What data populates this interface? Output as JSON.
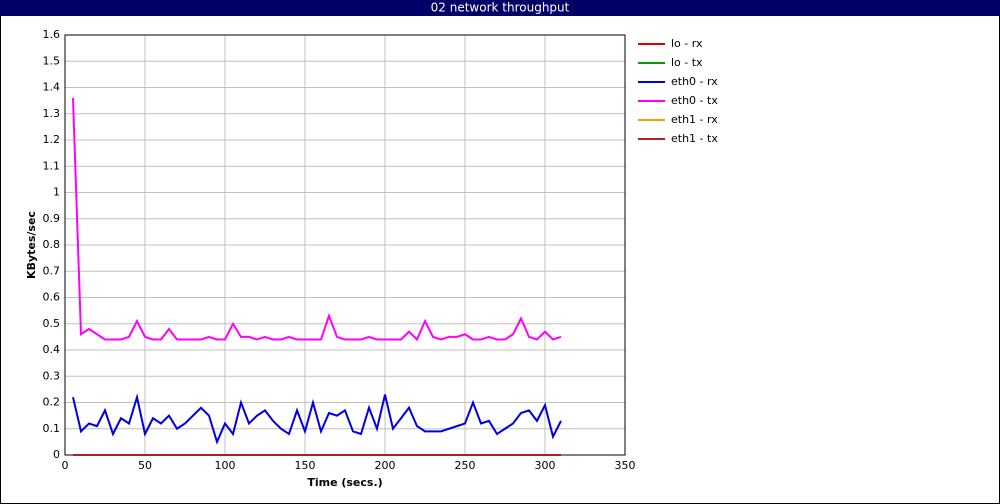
{
  "chart_data": {
    "type": "line",
    "title": "02 network throughput",
    "x_label": "Time (secs.)",
    "y_label": "KBytes/sec",
    "x": [
      5,
      10,
      15,
      20,
      25,
      30,
      35,
      40,
      45,
      50,
      55,
      60,
      65,
      70,
      75,
      80,
      85,
      90,
      95,
      100,
      105,
      110,
      115,
      120,
      125,
      130,
      135,
      140,
      145,
      150,
      155,
      160,
      165,
      170,
      175,
      180,
      185,
      190,
      195,
      200,
      205,
      210,
      215,
      220,
      225,
      230,
      235,
      240,
      245,
      250,
      255,
      260,
      265,
      270,
      275,
      280,
      285,
      290,
      295,
      300,
      305,
      310
    ],
    "xlim": [
      0,
      350
    ],
    "xticks": [
      0,
      50,
      100,
      150,
      200,
      250,
      300,
      350
    ],
    "ylim": [
      0,
      1.6
    ],
    "yticks": [
      0,
      0.1,
      0.2,
      0.3,
      0.4,
      0.5,
      0.6,
      0.7,
      0.8,
      0.9,
      1,
      1.1,
      1.2,
      1.3,
      1.4,
      1.5,
      1.6
    ],
    "grid": true,
    "legend": "right",
    "series": [
      {
        "name": "lo - rx",
        "color": "#e00000",
        "values": [
          0,
          0,
          0,
          0,
          0,
          0,
          0,
          0,
          0,
          0,
          0,
          0,
          0,
          0,
          0,
          0,
          0,
          0,
          0,
          0,
          0,
          0,
          0,
          0,
          0,
          0,
          0,
          0,
          0,
          0,
          0,
          0,
          0,
          0,
          0,
          0,
          0,
          0,
          0,
          0,
          0,
          0,
          0,
          0,
          0,
          0,
          0,
          0,
          0,
          0,
          0,
          0,
          0,
          0,
          0,
          0,
          0,
          0,
          0,
          0,
          0,
          0
        ]
      },
      {
        "name": "lo - tx",
        "color": "#00a000",
        "values": [
          0,
          0,
          0,
          0,
          0,
          0,
          0,
          0,
          0,
          0,
          0,
          0,
          0,
          0,
          0,
          0,
          0,
          0,
          0,
          0,
          0,
          0,
          0,
          0,
          0,
          0,
          0,
          0,
          0,
          0,
          0,
          0,
          0,
          0,
          0,
          0,
          0,
          0,
          0,
          0,
          0,
          0,
          0,
          0,
          0,
          0,
          0,
          0,
          0,
          0,
          0,
          0,
          0,
          0,
          0,
          0,
          0,
          0,
          0,
          0,
          0,
          0
        ]
      },
      {
        "name": "eth0 - rx",
        "color": "#0000e0",
        "values": [
          0.22,
          0.09,
          0.12,
          0.11,
          0.17,
          0.08,
          0.14,
          0.12,
          0.22,
          0.08,
          0.14,
          0.12,
          0.15,
          0.1,
          0.12,
          0.15,
          0.18,
          0.15,
          0.05,
          0.12,
          0.08,
          0.2,
          0.12,
          0.15,
          0.17,
          0.13,
          0.1,
          0.08,
          0.17,
          0.09,
          0.2,
          0.09,
          0.16,
          0.15,
          0.17,
          0.09,
          0.08,
          0.18,
          0.1,
          0.23,
          0.1,
          0.14,
          0.18,
          0.11,
          0.09,
          0.09,
          0.09,
          0.1,
          0.11,
          0.12,
          0.2,
          0.12,
          0.13,
          0.08,
          0.1,
          0.12,
          0.16,
          0.17,
          0.13,
          0.19,
          0.07,
          0.13
        ]
      },
      {
        "name": "eth0 - tx",
        "color": "#ff00ff",
        "values": [
          1.36,
          0.46,
          0.48,
          0.46,
          0.44,
          0.44,
          0.44,
          0.45,
          0.51,
          0.45,
          0.44,
          0.44,
          0.48,
          0.44,
          0.44,
          0.44,
          0.44,
          0.45,
          0.44,
          0.44,
          0.5,
          0.45,
          0.45,
          0.44,
          0.45,
          0.44,
          0.44,
          0.45,
          0.44,
          0.44,
          0.44,
          0.44,
          0.53,
          0.45,
          0.44,
          0.44,
          0.44,
          0.45,
          0.44,
          0.44,
          0.44,
          0.44,
          0.47,
          0.44,
          0.51,
          0.45,
          0.44,
          0.45,
          0.45,
          0.46,
          0.44,
          0.44,
          0.45,
          0.44,
          0.44,
          0.46,
          0.52,
          0.45,
          0.44,
          0.47,
          0.44,
          0.45
        ]
      },
      {
        "name": "eth1 - rx",
        "color": "#f0a000",
        "values": [
          0,
          0,
          0,
          0,
          0,
          0,
          0,
          0,
          0,
          0,
          0,
          0,
          0,
          0,
          0,
          0,
          0,
          0,
          0,
          0,
          0,
          0,
          0,
          0,
          0,
          0,
          0,
          0,
          0,
          0,
          0,
          0,
          0,
          0,
          0,
          0,
          0,
          0,
          0,
          0,
          0,
          0,
          0,
          0,
          0,
          0,
          0,
          0,
          0,
          0,
          0,
          0,
          0,
          0,
          0,
          0,
          0,
          0,
          0,
          0,
          0,
          0
        ]
      },
      {
        "name": "eth1 - tx",
        "color": "#b02020",
        "values": [
          0,
          0,
          0,
          0,
          0,
          0,
          0,
          0,
          0,
          0,
          0,
          0,
          0,
          0,
          0,
          0,
          0,
          0,
          0,
          0,
          0,
          0,
          0,
          0,
          0,
          0,
          0,
          0,
          0,
          0,
          0,
          0,
          0,
          0,
          0,
          0,
          0,
          0,
          0,
          0,
          0,
          0,
          0,
          0,
          0,
          0,
          0,
          0,
          0,
          0,
          0,
          0,
          0,
          0,
          0,
          0,
          0,
          0,
          0,
          0,
          0,
          0
        ]
      }
    ]
  }
}
